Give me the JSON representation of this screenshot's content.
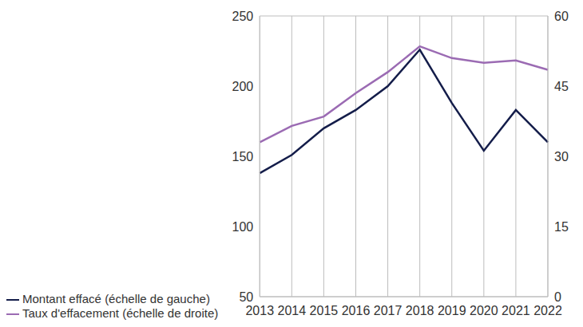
{
  "chart_data": {
    "type": "line",
    "categories": [
      "2013",
      "2014",
      "2015",
      "2016",
      "2017",
      "2018",
      "2019",
      "2020",
      "2021",
      "2022"
    ],
    "series": [
      {
        "name": "Montant effacé (échelle de gauche)",
        "color": "#141d4a",
        "values": [
          138,
          151,
          170,
          183,
          200,
          226,
          188,
          154,
          183,
          160
        ]
      },
      {
        "name": "Taux d'effacement (échelle de droite)",
        "color": "#9b6bb3",
        "axis": "y2",
        "values": [
          33,
          36.5,
          38.5,
          43.5,
          48,
          53.5,
          51,
          50,
          50.5,
          48.5
        ]
      }
    ],
    "ylim": [
      50,
      250
    ],
    "yticks": [
      50,
      100,
      150,
      200,
      250
    ],
    "y2lim": [
      0,
      60
    ],
    "y2ticks": [
      0,
      15,
      30,
      45,
      60
    ],
    "grid": true,
    "legend": "bottom-left"
  }
}
